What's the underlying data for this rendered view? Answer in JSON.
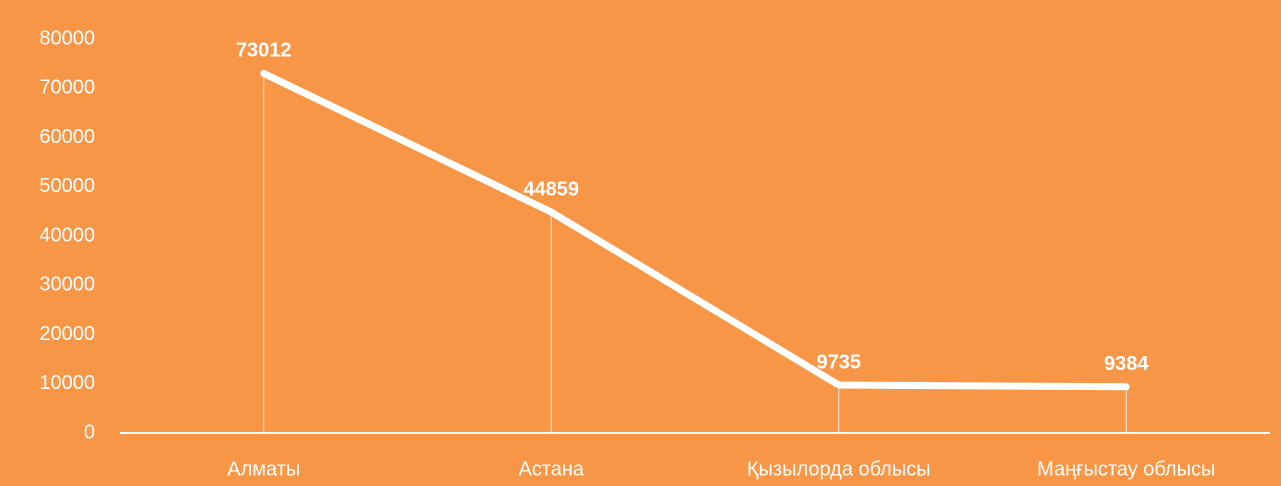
{
  "chart_data": {
    "type": "line",
    "categories": [
      "Алматы",
      "Астана",
      "Қызылорда облысы",
      "Маңғыстау облысы"
    ],
    "values": [
      73012,
      44859,
      9735,
      9384
    ],
    "color": "#ffffff",
    "background": "#f79646",
    "ylim": [
      0,
      80000
    ],
    "yticks": [
      0,
      10000,
      20000,
      30000,
      40000,
      50000,
      60000,
      70000,
      80000
    ],
    "data_labels": true,
    "drop_lines": true
  }
}
